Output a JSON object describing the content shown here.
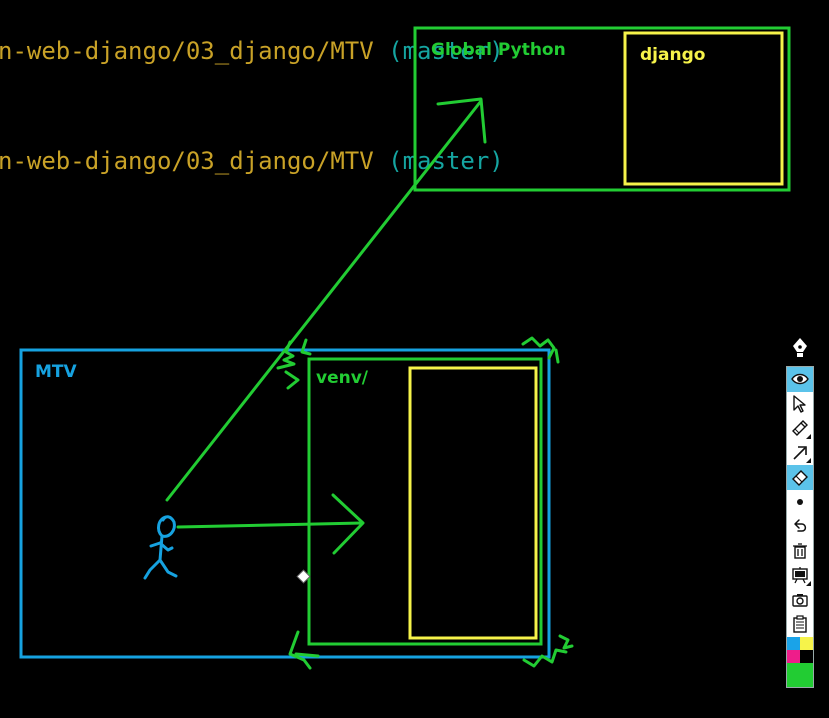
{
  "terminal": {
    "lines": [
      {
        "path": "n-web-django/03_django/MTV",
        "branch": "(master)"
      },
      {
        "path": "n-web-django/03_django/MTV",
        "branch": "(master)"
      }
    ]
  },
  "annotations": {
    "global_python_label": "Global Python",
    "django_label": "django",
    "mtv_label": "MTV",
    "venv_label": "venv/"
  },
  "colors": {
    "green": "#22cc33",
    "yellow": "#f6f34a",
    "blue": "#16a2e0",
    "path_text": "#c9a227",
    "branch_text": "#15a5a1",
    "toolbar_active": "#5bc3ea"
  },
  "toolbar": {
    "tools": [
      {
        "name": "eye-icon",
        "active": true
      },
      {
        "name": "cursor-icon",
        "active": false
      },
      {
        "name": "highlighter-icon",
        "active": false
      },
      {
        "name": "arrow-tool-icon",
        "active": false
      },
      {
        "name": "eraser-icon",
        "active": true
      },
      {
        "name": "dot-icon",
        "active": false
      },
      {
        "name": "undo-icon",
        "active": false
      },
      {
        "name": "trash-icon",
        "active": false
      },
      {
        "name": "board-icon",
        "active": false
      },
      {
        "name": "camera-icon",
        "active": false
      },
      {
        "name": "clipboard-icon",
        "active": false
      }
    ],
    "palette": [
      "#1aa3e8",
      "#f6f34a",
      "#ee1d8a",
      "#000000"
    ],
    "current_color": "#22cc33"
  }
}
